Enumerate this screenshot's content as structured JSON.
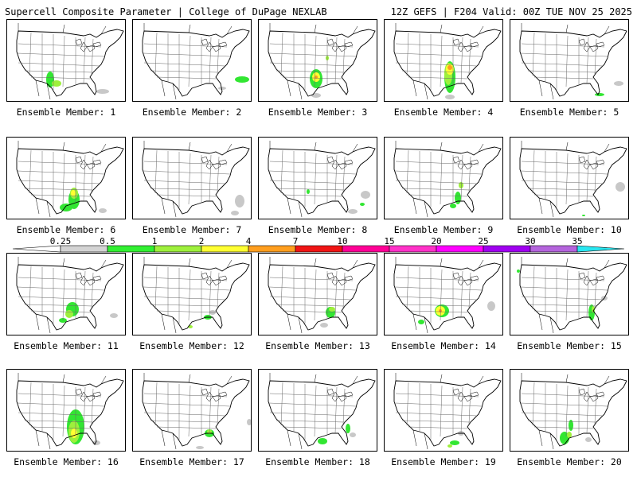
{
  "header": {
    "title_left": "Supercell Composite Parameter | College of DuPage NEXLAB",
    "title_right": "12Z GEFS | F204 Valid: 00Z TUE NOV 25 2025"
  },
  "members": [
    {
      "label": "Ensemble Member: 1",
      "blobs": [
        {
          "c": "green",
          "x": 54,
          "y": 75,
          "rx": 5,
          "ry": 10
        },
        {
          "c": "light",
          "x": 62,
          "y": 80,
          "rx": 6,
          "ry": 4
        },
        {
          "c": "gray",
          "x": 120,
          "y": 90,
          "rx": 8,
          "ry": 3
        }
      ]
    },
    {
      "label": "Ensemble Member: 2",
      "blobs": [
        {
          "c": "green",
          "x": 137,
          "y": 75,
          "rx": 9,
          "ry": 4
        },
        {
          "c": "gray",
          "x": 112,
          "y": 86,
          "rx": 5,
          "ry": 2
        }
      ]
    },
    {
      "label": "Ensemble Member: 3",
      "blobs": [
        {
          "c": "green",
          "x": 72,
          "y": 74,
          "rx": 8,
          "ry": 12
        },
        {
          "c": "yellow",
          "x": 72,
          "y": 72,
          "rx": 5,
          "ry": 6
        },
        {
          "c": "orange",
          "x": 72,
          "y": 72,
          "rx": 2,
          "ry": 2
        },
        {
          "c": "gray",
          "x": 72,
          "y": 95,
          "rx": 6,
          "ry": 3
        },
        {
          "c": "light",
          "x": 86,
          "y": 48,
          "rx": 2,
          "ry": 3
        }
      ]
    },
    {
      "label": "Ensemble Member: 4",
      "blobs": [
        {
          "c": "green",
          "x": 82,
          "y": 72,
          "rx": 7,
          "ry": 20
        },
        {
          "c": "light",
          "x": 80,
          "y": 68,
          "rx": 5,
          "ry": 14
        },
        {
          "c": "yellow",
          "x": 82,
          "y": 62,
          "rx": 5,
          "ry": 7
        },
        {
          "c": "orange",
          "x": 82,
          "y": 60,
          "rx": 3,
          "ry": 3
        },
        {
          "c": "gray",
          "x": 82,
          "y": 97,
          "rx": 6,
          "ry": 3
        }
      ]
    },
    {
      "label": "Ensemble Member: 5",
      "blobs": [
        {
          "c": "green",
          "x": 112,
          "y": 94,
          "rx": 6,
          "ry": 2
        },
        {
          "c": "gray",
          "x": 136,
          "y": 80,
          "rx": 6,
          "ry": 3
        }
      ]
    },
    {
      "label": "Ensemble Member: 6",
      "blobs": [
        {
          "c": "green",
          "x": 84,
          "y": 78,
          "rx": 7,
          "ry": 12
        },
        {
          "c": "light",
          "x": 84,
          "y": 70,
          "rx": 5,
          "ry": 7
        },
        {
          "c": "yellow",
          "x": 83,
          "y": 70,
          "rx": 3,
          "ry": 4
        },
        {
          "c": "green",
          "x": 74,
          "y": 88,
          "rx": 8,
          "ry": 5
        },
        {
          "c": "gray",
          "x": 120,
          "y": 92,
          "rx": 5,
          "ry": 3
        }
      ]
    },
    {
      "label": "Ensemble Member: 7",
      "blobs": [
        {
          "c": "gray",
          "x": 134,
          "y": 80,
          "rx": 6,
          "ry": 8
        },
        {
          "c": "gray",
          "x": 128,
          "y": 95,
          "rx": 5,
          "ry": 3
        }
      ]
    },
    {
      "label": "Ensemble Member: 8",
      "blobs": [
        {
          "c": "green",
          "x": 62,
          "y": 68,
          "rx": 2,
          "ry": 3
        },
        {
          "c": "green",
          "x": 130,
          "y": 84,
          "rx": 3,
          "ry": 2
        },
        {
          "c": "gray",
          "x": 134,
          "y": 72,
          "rx": 6,
          "ry": 5
        },
        {
          "c": "gray",
          "x": 118,
          "y": 93,
          "rx": 6,
          "ry": 3
        }
      ]
    },
    {
      "label": "Ensemble Member: 9",
      "blobs": [
        {
          "c": "green",
          "x": 92,
          "y": 76,
          "rx": 4,
          "ry": 8
        },
        {
          "c": "light",
          "x": 96,
          "y": 60,
          "rx": 3,
          "ry": 4
        },
        {
          "c": "green",
          "x": 86,
          "y": 86,
          "rx": 4,
          "ry": 3
        }
      ]
    },
    {
      "label": "Ensemble Member: 10",
      "blobs": [
        {
          "c": "gray",
          "x": 138,
          "y": 62,
          "rx": 6,
          "ry": 6
        },
        {
          "c": "green",
          "x": 92,
          "y": 98,
          "rx": 2,
          "ry": 1
        }
      ]
    },
    {
      "label": "Ensemble Member: 11",
      "blobs": [
        {
          "c": "green",
          "x": 82,
          "y": 70,
          "rx": 8,
          "ry": 9
        },
        {
          "c": "light",
          "x": 78,
          "y": 76,
          "rx": 5,
          "ry": 5
        },
        {
          "c": "green",
          "x": 70,
          "y": 84,
          "rx": 5,
          "ry": 3
        },
        {
          "c": "gray",
          "x": 134,
          "y": 78,
          "rx": 5,
          "ry": 3
        }
      ]
    },
    {
      "label": "Ensemble Member: 12",
      "blobs": [
        {
          "c": "green",
          "x": 94,
          "y": 80,
          "rx": 5,
          "ry": 3
        },
        {
          "c": "gray",
          "x": 100,
          "y": 74,
          "rx": 4,
          "ry": 3
        },
        {
          "c": "light",
          "x": 72,
          "y": 92,
          "rx": 3,
          "ry": 2
        }
      ]
    },
    {
      "label": "Ensemble Member: 13",
      "blobs": [
        {
          "c": "green",
          "x": 90,
          "y": 74,
          "rx": 6,
          "ry": 7
        },
        {
          "c": "light",
          "x": 92,
          "y": 70,
          "rx": 4,
          "ry": 3
        },
        {
          "c": "gray",
          "x": 82,
          "y": 90,
          "rx": 5,
          "ry": 3
        }
      ]
    },
    {
      "label": "Ensemble Member: 14",
      "blobs": [
        {
          "c": "green",
          "x": 72,
          "y": 72,
          "rx": 9,
          "ry": 8
        },
        {
          "c": "yellow",
          "x": 70,
          "y": 72,
          "rx": 6,
          "ry": 6
        },
        {
          "c": "orange",
          "x": 70,
          "y": 72,
          "rx": 2,
          "ry": 2
        },
        {
          "c": "green",
          "x": 46,
          "y": 86,
          "rx": 4,
          "ry": 3
        },
        {
          "c": "gray",
          "x": 134,
          "y": 66,
          "rx": 5,
          "ry": 6
        }
      ]
    },
    {
      "label": "Ensemble Member: 15",
      "blobs": [
        {
          "c": "green",
          "x": 102,
          "y": 74,
          "rx": 4,
          "ry": 10
        },
        {
          "c": "light",
          "x": 104,
          "y": 70,
          "rx": 2,
          "ry": 4
        },
        {
          "c": "gray",
          "x": 118,
          "y": 56,
          "rx": 4,
          "ry": 3
        },
        {
          "c": "green",
          "x": 10,
          "y": 22,
          "rx": 2,
          "ry": 2
        }
      ]
    },
    {
      "label": "Ensemble Member: 16",
      "blobs": [
        {
          "c": "green",
          "x": 86,
          "y": 72,
          "rx": 11,
          "ry": 22
        },
        {
          "c": "light",
          "x": 84,
          "y": 78,
          "rx": 7,
          "ry": 14
        },
        {
          "c": "yellow",
          "x": 84,
          "y": 80,
          "rx": 4,
          "ry": 6
        },
        {
          "c": "gray",
          "x": 112,
          "y": 92,
          "rx": 5,
          "ry": 3
        }
      ]
    },
    {
      "label": "Ensemble Member: 17",
      "blobs": [
        {
          "c": "green",
          "x": 96,
          "y": 80,
          "rx": 6,
          "ry": 5
        },
        {
          "c": "light",
          "x": 96,
          "y": 78,
          "rx": 3,
          "ry": 3
        },
        {
          "c": "gray",
          "x": 84,
          "y": 98,
          "rx": 5,
          "ry": 2
        },
        {
          "c": "gray",
          "x": 146,
          "y": 66,
          "rx": 3,
          "ry": 4
        }
      ]
    },
    {
      "label": "Ensemble Member: 18",
      "blobs": [
        {
          "c": "green",
          "x": 80,
          "y": 90,
          "rx": 6,
          "ry": 4
        },
        {
          "c": "green",
          "x": 112,
          "y": 74,
          "rx": 3,
          "ry": 6
        },
        {
          "c": "gray",
          "x": 118,
          "y": 82,
          "rx": 4,
          "ry": 3
        }
      ]
    },
    {
      "label": "Ensemble Member: 19",
      "blobs": [
        {
          "c": "green",
          "x": 88,
          "y": 92,
          "rx": 6,
          "ry": 3
        },
        {
          "c": "gray",
          "x": 96,
          "y": 80,
          "rx": 4,
          "ry": 3
        },
        {
          "c": "light",
          "x": 82,
          "y": 96,
          "rx": 3,
          "ry": 2
        }
      ]
    },
    {
      "label": "Ensemble Member: 20",
      "blobs": [
        {
          "c": "green",
          "x": 68,
          "y": 86,
          "rx": 6,
          "ry": 8
        },
        {
          "c": "green",
          "x": 76,
          "y": 70,
          "rx": 3,
          "ry": 7
        },
        {
          "c": "light",
          "x": 74,
          "y": 82,
          "rx": 3,
          "ry": 4
        },
        {
          "c": "gray",
          "x": 98,
          "y": 88,
          "rx": 4,
          "ry": 3
        }
      ]
    }
  ],
  "colorbar": {
    "labels": [
      "0.25",
      "0.5",
      "1",
      "2",
      "4",
      "7",
      "10",
      "15",
      "20",
      "25",
      "30",
      "35"
    ],
    "colors": [
      "#d3d3d3",
      "#32f032",
      "#9ef03c",
      "#ffff32",
      "#ff9e1e",
      "#f01414",
      "#ff0096",
      "#ff32c8",
      "#ff00ff",
      "#a000f0",
      "#b464dc",
      "#28e6f0"
    ]
  },
  "palette": {
    "gray": "#c8c8c8",
    "green": "#32e632",
    "light": "#9ef03c",
    "yellow": "#ffff32",
    "orange": "#ff9e1e"
  }
}
